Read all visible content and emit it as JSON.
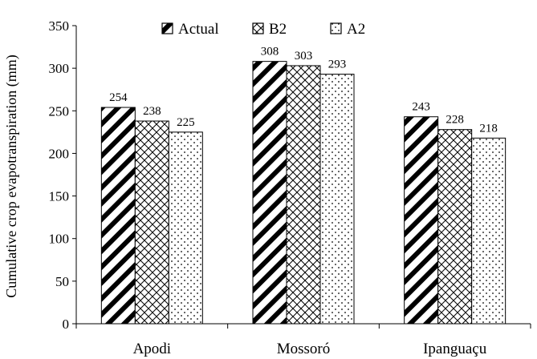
{
  "chart_data": {
    "type": "bar",
    "title": "",
    "xlabel": "",
    "ylabel": "Cumulative crop evapotranspiration (mm)",
    "categories": [
      "Apodi",
      "Mossoró",
      "Ipanguaçu"
    ],
    "series": [
      {
        "name": "Actual",
        "values": [
          254,
          308,
          243
        ],
        "pattern": "diagonal-bold"
      },
      {
        "name": "B2",
        "values": [
          238,
          303,
          228
        ],
        "pattern": "crosshatch"
      },
      {
        "name": "A2",
        "values": [
          225,
          293,
          218
        ],
        "pattern": "dots"
      }
    ],
    "ylim": [
      0,
      350
    ],
    "yticks": [
      0,
      50,
      100,
      150,
      200,
      250,
      300,
      350
    ],
    "grid": false,
    "legend_position": "top"
  }
}
